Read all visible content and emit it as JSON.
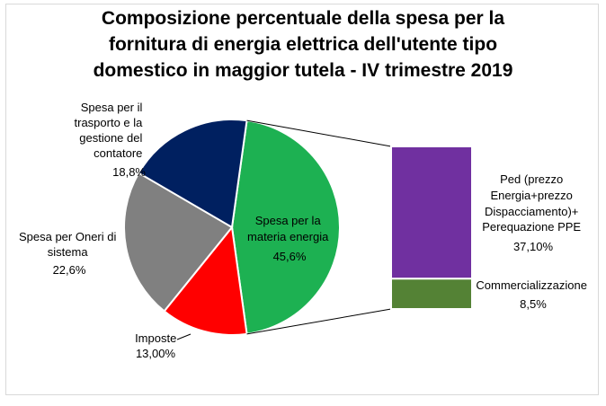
{
  "chart_data": {
    "type": "bar-of-pie",
    "title_lines": [
      "Composizione percentuale della spesa per la",
      "fornitura di energia elettrica dell'utente tipo",
      "domestico in maggior tutela - IV trimestre 2019"
    ],
    "pie": [
      {
        "label_lines": [
          "Spesa per la",
          "materia energia"
        ],
        "value_text": "45,6%",
        "value": 45.6,
        "color": "#1db152"
      },
      {
        "label_lines": [
          "Imposte"
        ],
        "value_text": "13,00%",
        "value": 13.0,
        "color": "#ff0000"
      },
      {
        "label_lines": [
          "Spesa per Oneri di",
          "sistema"
        ],
        "value_text": "22,6%",
        "value": 22.6,
        "color": "#808080"
      },
      {
        "label_lines": [
          "Spesa per il",
          "trasporto e la",
          "gestione del",
          "contatore"
        ],
        "value_text": "18,8%",
        "value": 18.8,
        "color": "#002060"
      }
    ],
    "bar": [
      {
        "label_lines": [
          "Ped (prezzo",
          "Energia+prezzo",
          "Dispacciamento)+",
          "Perequazione PPE"
        ],
        "value_text": "37,10%",
        "value": 37.1,
        "color": "#7030a0"
      },
      {
        "label_lines": [
          "Commercializzazione"
        ],
        "value_text": "8,5%",
        "value": 8.5,
        "color": "#548235"
      }
    ]
  }
}
